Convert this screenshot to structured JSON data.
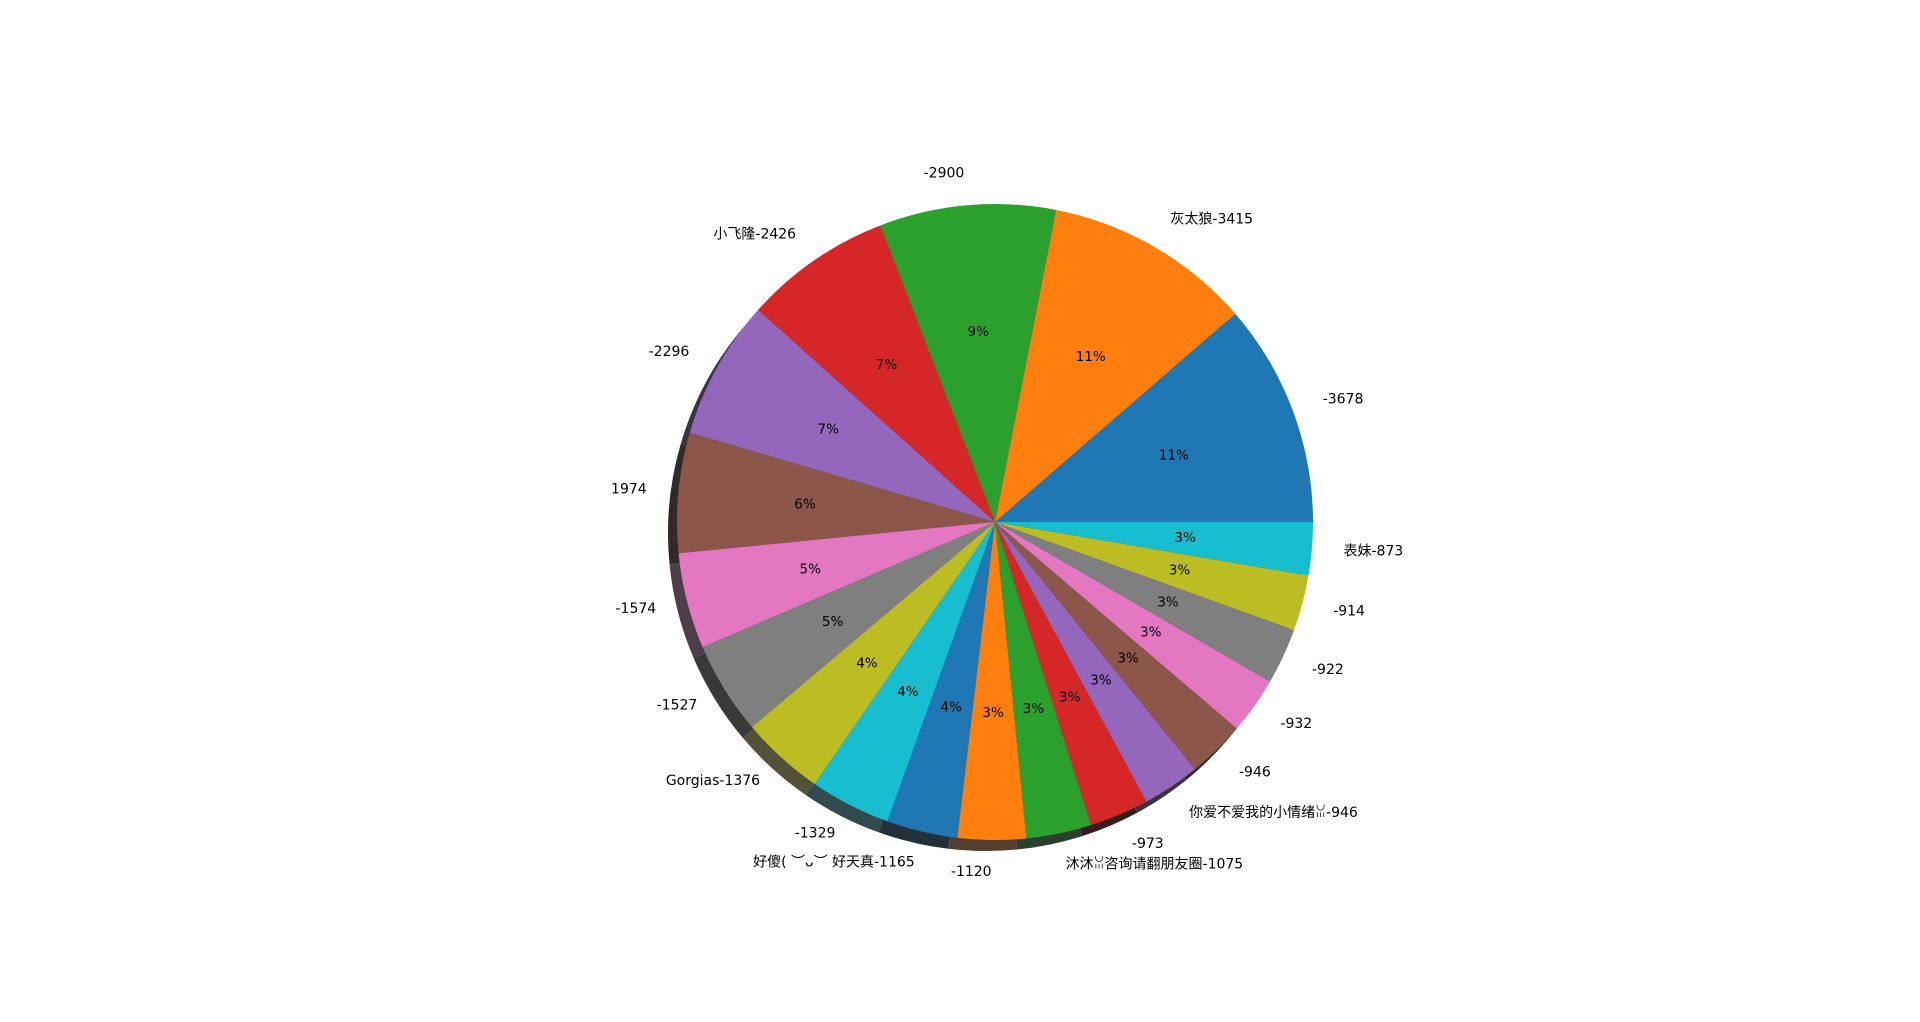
{
  "chart_data": {
    "type": "pie",
    "shadow": true,
    "start_angle_deg": 0,
    "direction": "counterclockwise",
    "title": "",
    "slices": [
      {
        "label": "-3678",
        "value": 3678,
        "pct_label": "11%",
        "color": "#1f77b4"
      },
      {
        "label": "灰太狼-3415",
        "value": 3415,
        "pct_label": "11%",
        "color": "#ff7f0e"
      },
      {
        "label": "-2900",
        "value": 2900,
        "pct_label": "9%",
        "color": "#2ca02c"
      },
      {
        "label": "小飞隆-2426",
        "value": 2426,
        "pct_label": "7%",
        "color": "#d62728"
      },
      {
        "label": "-2296",
        "value": 2296,
        "pct_label": "7%",
        "color": "#9467bd"
      },
      {
        "label": "1974",
        "value": 1974,
        "pct_label": "6%",
        "color": "#8c564b"
      },
      {
        "label": "-1574",
        "value": 1574,
        "pct_label": "5%",
        "color": "#e377c2"
      },
      {
        "label": "-1527",
        "value": 1527,
        "pct_label": "5%",
        "color": "#7f7f7f"
      },
      {
        "label": "Gorgias-1376",
        "value": 1376,
        "pct_label": "4%",
        "color": "#bcbd22"
      },
      {
        "label": "-1329",
        "value": 1329,
        "pct_label": "4%",
        "color": "#17becf"
      },
      {
        "label": "好傻( ︶ᴗ︶ 好天真-1165",
        "value": 1165,
        "pct_label": "4%",
        "color": "#1f77b4"
      },
      {
        "label": "-1120",
        "value": 1120,
        "pct_label": "3%",
        "color": "#ff7f0e"
      },
      {
        "label": "沐沐ꈍ咨询请翻朋友圈-1075",
        "value": 1075,
        "pct_label": "3%",
        "color": "#2ca02c"
      },
      {
        "label": "-973",
        "value": 973,
        "pct_label": "3%",
        "color": "#d62728"
      },
      {
        "label": "你爱不爱我的小情绪ꈍ-946",
        "value": 946,
        "pct_label": "3%",
        "color": "#9467bd"
      },
      {
        "label": "-946",
        "value": 946,
        "pct_label": "3%",
        "color": "#8c564b"
      },
      {
        "label": "-932",
        "value": 932,
        "pct_label": "3%",
        "color": "#e377c2"
      },
      {
        "label": "-922",
        "value": 922,
        "pct_label": "3%",
        "color": "#7f7f7f"
      },
      {
        "label": "-914",
        "value": 914,
        "pct_label": "3%",
        "color": "#bcbd22"
      },
      {
        "label": "表妹-873",
        "value": 873,
        "pct_label": "3%",
        "color": "#17becf"
      }
    ]
  }
}
